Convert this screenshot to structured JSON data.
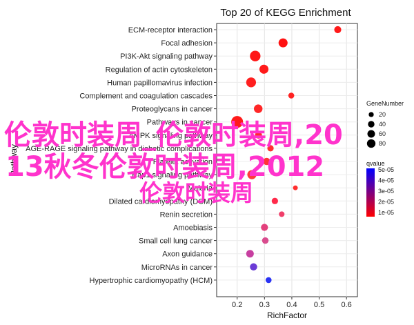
{
  "chart_data": {
    "type": "scatter",
    "title": "Top 20 of KEGG Enrichment",
    "xlabel": "RichFactor",
    "ylabel": "Pathway",
    "xlim": [
      0.125,
      0.64
    ],
    "x_ticks": [
      "0.2",
      "0.3",
      "0.4",
      "0.5",
      "0.6"
    ],
    "x_tick_values": [
      0.2,
      0.3,
      0.4,
      0.5,
      0.6
    ],
    "grid": true,
    "legend_placement": "right",
    "size_legend": {
      "title": "GeneNumber",
      "entries": [
        {
          "label": "20",
          "value": 20
        },
        {
          "label": "40",
          "value": 40
        },
        {
          "label": "60",
          "value": 60
        },
        {
          "label": "80",
          "value": 80
        }
      ]
    },
    "color_legend": {
      "title": "qvalue",
      "labels": [
        "5e-05",
        "4e-05",
        "3e-05",
        "2e-05",
        "1e-05"
      ],
      "low_color": "#ff0000",
      "high_color": "#0000ff"
    },
    "points": [
      {
        "pathway": "ECM-receptor interaction",
        "x": 0.568,
        "gene": 20,
        "color": "#ff1a1a"
      },
      {
        "pathway": "Focal adhesion",
        "x": 0.368,
        "gene": 40,
        "color": "#ff1111"
      },
      {
        "pathway": "PI3K-Akt signaling pathway",
        "x": 0.266,
        "gene": 60,
        "color": "#ff1717"
      },
      {
        "pathway": "Regulation of actin cytoskeleton",
        "x": 0.298,
        "gene": 40,
        "color": "#ff1a1a"
      },
      {
        "pathway": "Human papillomavirus infection",
        "x": 0.251,
        "gene": 50,
        "color": "#ff1f1f"
      },
      {
        "pathway": "Complement and coagulation cascades",
        "x": 0.398,
        "gene": 12,
        "color": "#ff2222"
      },
      {
        "pathway": "Proteoglycans in cancer",
        "x": 0.277,
        "gene": 35,
        "color": "#ff2727"
      },
      {
        "pathway": "Pathways in cancer",
        "x": 0.2,
        "gene": 80,
        "color": "#ff1a1a"
      },
      {
        "pathway": "AMPK signaling pathway",
        "x": 0.278,
        "gene": 20,
        "color": "#ff2a2a"
      },
      {
        "pathway": "AGE-RAGE signaling pathway in diabetic complications",
        "x": 0.322,
        "gene": 15,
        "color": "#ff3030"
      },
      {
        "pathway": "Platelet activation",
        "x": 0.308,
        "gene": 22,
        "color": "#ff3535"
      },
      {
        "pathway": "Rap1 signaling pathway",
        "x": 0.254,
        "gene": 42,
        "color": "#ff3a3a"
      },
      {
        "pathway": "Malaria",
        "x": 0.413,
        "gene": 6,
        "color": "#ff2e2e"
      },
      {
        "pathway": "Dilated cardiomyopathy (DCM)",
        "x": 0.338,
        "gene": 15,
        "color": "#ff2a4a"
      },
      {
        "pathway": "Renin secretion",
        "x": 0.363,
        "gene": 10,
        "color": "#f03f6a"
      },
      {
        "pathway": "Amoebiasis",
        "x": 0.3,
        "gene": 20,
        "color": "#e3407c"
      },
      {
        "pathway": "Small cell lung cancer",
        "x": 0.303,
        "gene": 16,
        "color": "#d94c8e"
      },
      {
        "pathway": "Axon guidance",
        "x": 0.247,
        "gene": 25,
        "color": "#c73fa0"
      },
      {
        "pathway": "MicroRNAs in cancer",
        "x": 0.26,
        "gene": 22,
        "color": "#6b3bd6"
      },
      {
        "pathway": "Hypertrophic cardiomyopathy (HCM)",
        "x": 0.315,
        "gene": 12,
        "color": "#2a33f4"
      }
    ]
  },
  "overlay_text": {
    "line1": "伦敦时装周_伦敦时装周,20",
    "line2": "13秋冬伦敦时装周,2012",
    "line3": "伦敦时装周"
  }
}
